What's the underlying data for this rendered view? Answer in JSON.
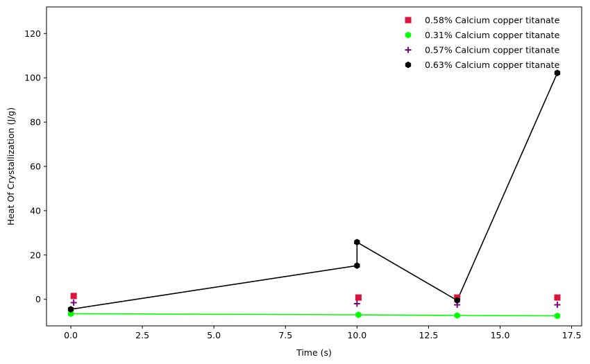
{
  "chart_data": {
    "type": "scatter",
    "xlabel": "Time (s)",
    "ylabel": "Heat Of Crystallization (J/g)",
    "xlim": [
      -0.85,
      17.85
    ],
    "ylim": [
      -12,
      132
    ],
    "xticks": [
      0.0,
      2.5,
      5.0,
      7.5,
      10.0,
      12.5,
      15.0,
      17.5
    ],
    "xtick_labels": [
      "0.0",
      "2.5",
      "5.0",
      "7.5",
      "10.0",
      "12.5",
      "15.0",
      "17.5"
    ],
    "yticks": [
      0,
      20,
      40,
      60,
      80,
      100,
      120
    ],
    "ytick_labels": [
      "0",
      "20",
      "40",
      "60",
      "80",
      "100",
      "120"
    ],
    "grid": false,
    "legend_position": "top-right",
    "series": [
      {
        "name": "0.58% Calcium copper titanate",
        "color": "#dc143c",
        "marker": "square",
        "line": false,
        "points": [
          [
            0.1,
            1.5
          ],
          [
            10.05,
            0.8
          ],
          [
            13.5,
            0.8
          ],
          [
            17.0,
            0.8
          ]
        ]
      },
      {
        "name": "0.31% Calcium copper titanate",
        "color": "#00ff00",
        "marker": "hexagon",
        "line": true,
        "points": [
          [
            0.0,
            -6.5
          ],
          [
            10.05,
            -7.0
          ],
          [
            13.5,
            -7.3
          ],
          [
            17.0,
            -7.5
          ]
        ]
      },
      {
        "name": "0.57% Calcium copper titanate",
        "color": "#800080",
        "marker": "plus",
        "line": false,
        "points": [
          [
            0.1,
            -1.5
          ],
          [
            10.0,
            -2.0
          ],
          [
            13.5,
            -2.5
          ],
          [
            17.0,
            -2.5
          ]
        ]
      },
      {
        "name": "0.63% Calcium copper titanate",
        "color": "#000000",
        "marker": "hexagon",
        "line": true,
        "points": [
          [
            0.0,
            -4.5
          ],
          [
            10.0,
            15.2
          ],
          [
            10.0,
            25.8
          ],
          [
            13.5,
            -0.5
          ],
          [
            17.0,
            102.2
          ]
        ]
      }
    ]
  }
}
